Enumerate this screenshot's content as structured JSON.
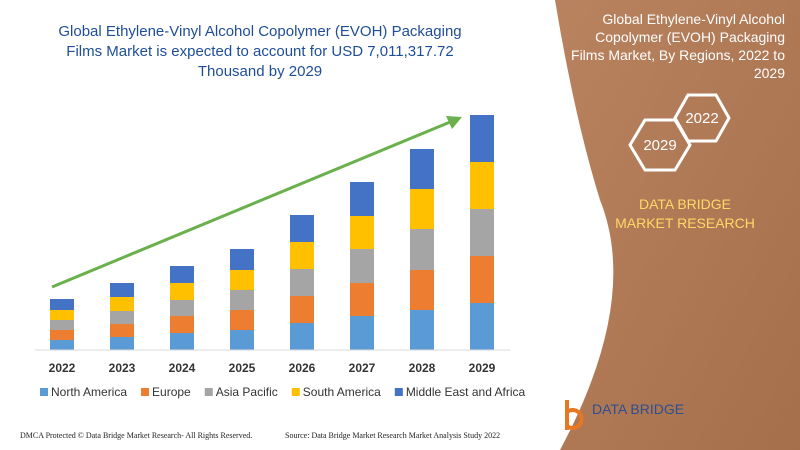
{
  "chart_data": {
    "type": "bar",
    "stacked": true,
    "title": "Global Ethylene-Vinyl Alcohol Copolymer (EVOH) Packaging Films Market is expected to account for USD 7,011,317.72 Thousand by 2029",
    "categories": [
      "2022",
      "2023",
      "2024",
      "2025",
      "2026",
      "2027",
      "2028",
      "2029"
    ],
    "series": [
      {
        "name": "North America",
        "color": "#5b9bd5",
        "values": [
          10,
          13,
          17,
          20,
          27,
          34,
          40,
          47
        ]
      },
      {
        "name": "Europe",
        "color": "#ed7d31",
        "values": [
          10,
          13,
          17,
          20,
          27,
          33,
          40,
          47
        ]
      },
      {
        "name": "Asia Pacific",
        "color": "#a5a5a5",
        "values": [
          10,
          13,
          16,
          20,
          27,
          34,
          41,
          47
        ]
      },
      {
        "name": "South America",
        "color": "#ffc000",
        "values": [
          10,
          14,
          17,
          20,
          27,
          33,
          40,
          47
        ]
      },
      {
        "name": "Middle East and Africa",
        "color": "#4472c4",
        "values": [
          11,
          14,
          17,
          21,
          27,
          34,
          40,
          47
        ]
      }
    ]
  },
  "side_panel": {
    "title": "Global Ethylene-Vinyl Alcohol Copolymer (EVOH) Packaging Films Market, By Regions, 2022 to 2029",
    "hexagons": [
      "2022",
      "2029"
    ],
    "brand": "DATA BRIDGE MARKET RESEARCH"
  },
  "logo": "DATA BRIDGE",
  "footer": {
    "left": "DMCA Protected © Data Bridge Market Research- All Rights Reserved.",
    "right": "Source: Data Bridge Market Research Market Analysis Study 2022"
  }
}
